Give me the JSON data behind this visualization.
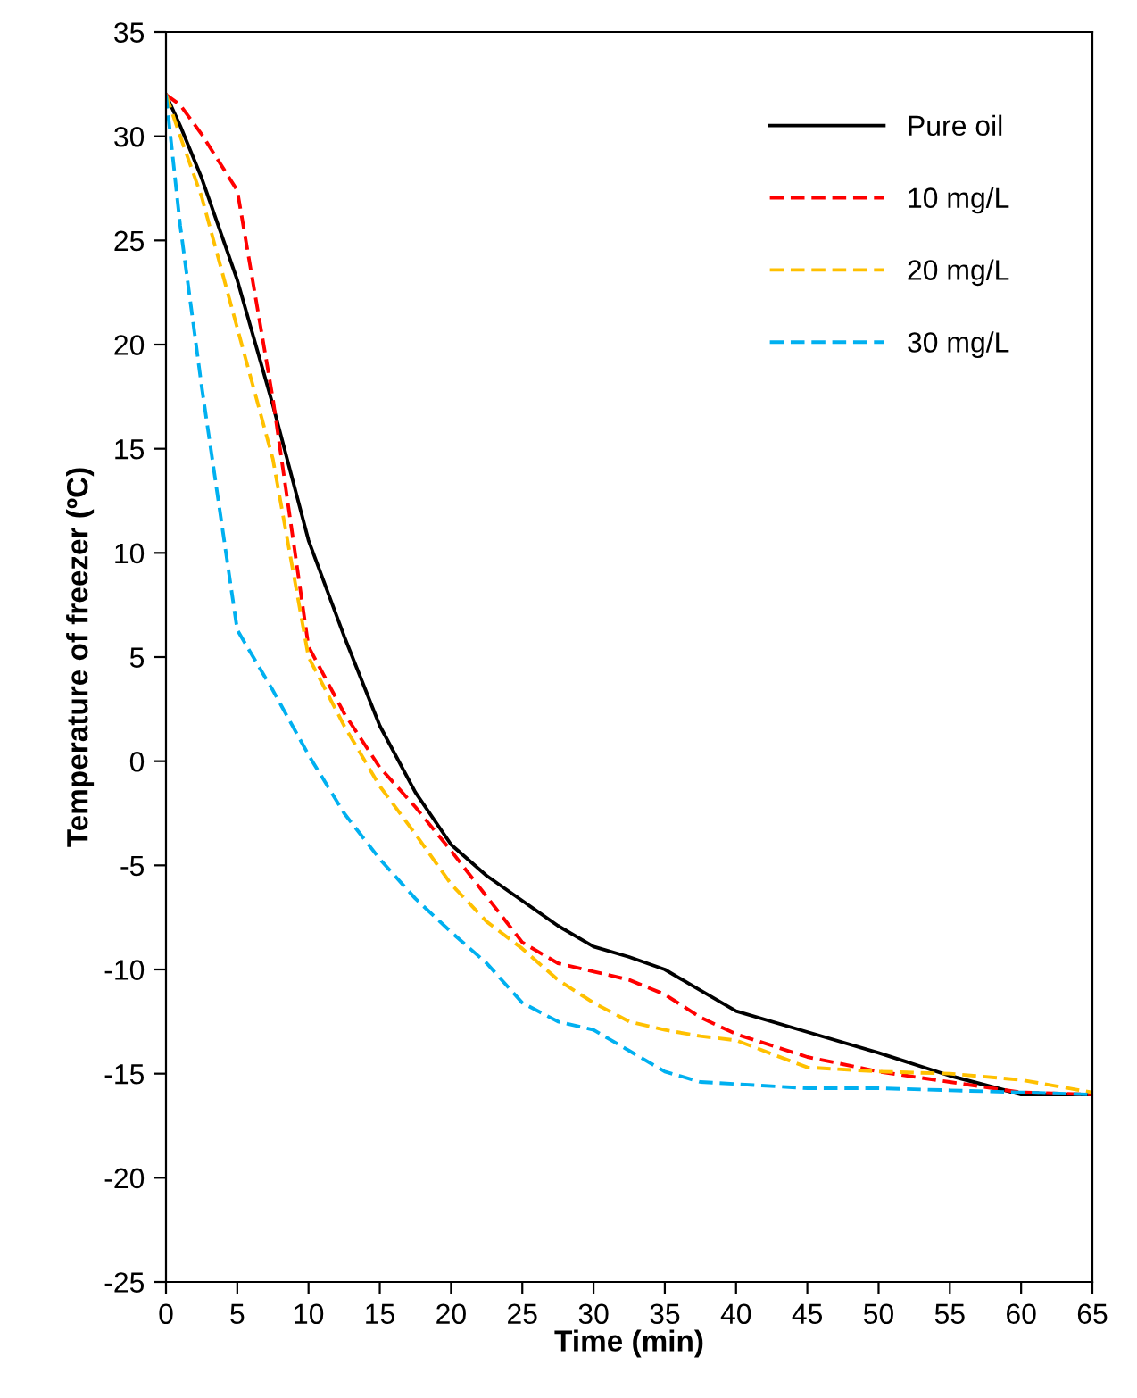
{
  "chart_data": {
    "type": "line",
    "xlabel": "Time (min)",
    "ylabel": "Temperature of freezer (ºC)",
    "x": [
      0,
      1,
      2.5,
      5,
      7.5,
      10,
      12.5,
      15,
      17.5,
      20,
      22.5,
      25,
      27.5,
      30,
      32.5,
      35,
      37.5,
      40,
      45,
      50,
      55,
      60,
      65
    ],
    "xlim": [
      0,
      65
    ],
    "xticks": [
      0,
      5,
      10,
      15,
      20,
      25,
      30,
      35,
      40,
      45,
      50,
      55,
      60,
      65
    ],
    "ylim": [
      -25,
      35
    ],
    "yticks": [
      -25,
      -20,
      -15,
      -10,
      -5,
      0,
      5,
      10,
      15,
      20,
      25,
      30,
      35
    ],
    "grid": false,
    "legend": "top right",
    "series": [
      {
        "name": "Pure oil",
        "color": "#000000",
        "line_style": "solid",
        "values": [
          32,
          30.5,
          28,
          23.1,
          17.1,
          10.6,
          6.0,
          1.7,
          -1.5,
          -4.0,
          -5.5,
          -6.7,
          -7.9,
          -8.9,
          -9.4,
          -10.0,
          -11.0,
          -12.0,
          -13.0,
          -14.0,
          -15.1,
          -16.0,
          -16.0
        ]
      },
      {
        "name": "10 mg/L",
        "color": "#ff0000",
        "line_style": "dashed",
        "values": [
          32,
          31.5,
          30.1,
          27.4,
          17.4,
          5.5,
          2.3,
          -0.3,
          -2.2,
          -4.3,
          -6.5,
          -8.7,
          -9.7,
          -10.1,
          -10.5,
          -11.2,
          -12.3,
          -13.1,
          -14.2,
          -14.9,
          -15.4,
          -15.9,
          -16.0
        ]
      },
      {
        "name": "20 mg/L",
        "color": "#ffc000",
        "line_style": "dashed",
        "values": [
          32,
          30,
          27.1,
          20.8,
          14.5,
          5.0,
          1.7,
          -1.2,
          -3.5,
          -5.9,
          -7.7,
          -9.0,
          -10.5,
          -11.6,
          -12.5,
          -12.9,
          -13.2,
          -13.4,
          -14.7,
          -14.9,
          -15.0,
          -15.3,
          -15.9
        ]
      },
      {
        "name": "30 mg/L",
        "color": "#00b0f0",
        "line_style": "dashed",
        "values": [
          32,
          25.7,
          18.0,
          6.3,
          3.4,
          0.3,
          -2.5,
          -4.7,
          -6.6,
          -8.2,
          -9.7,
          -11.6,
          -12.5,
          -12.9,
          -13.9,
          -14.9,
          -15.4,
          -15.5,
          -15.7,
          -15.7,
          -15.8,
          -15.9,
          -16.0
        ]
      }
    ]
  }
}
